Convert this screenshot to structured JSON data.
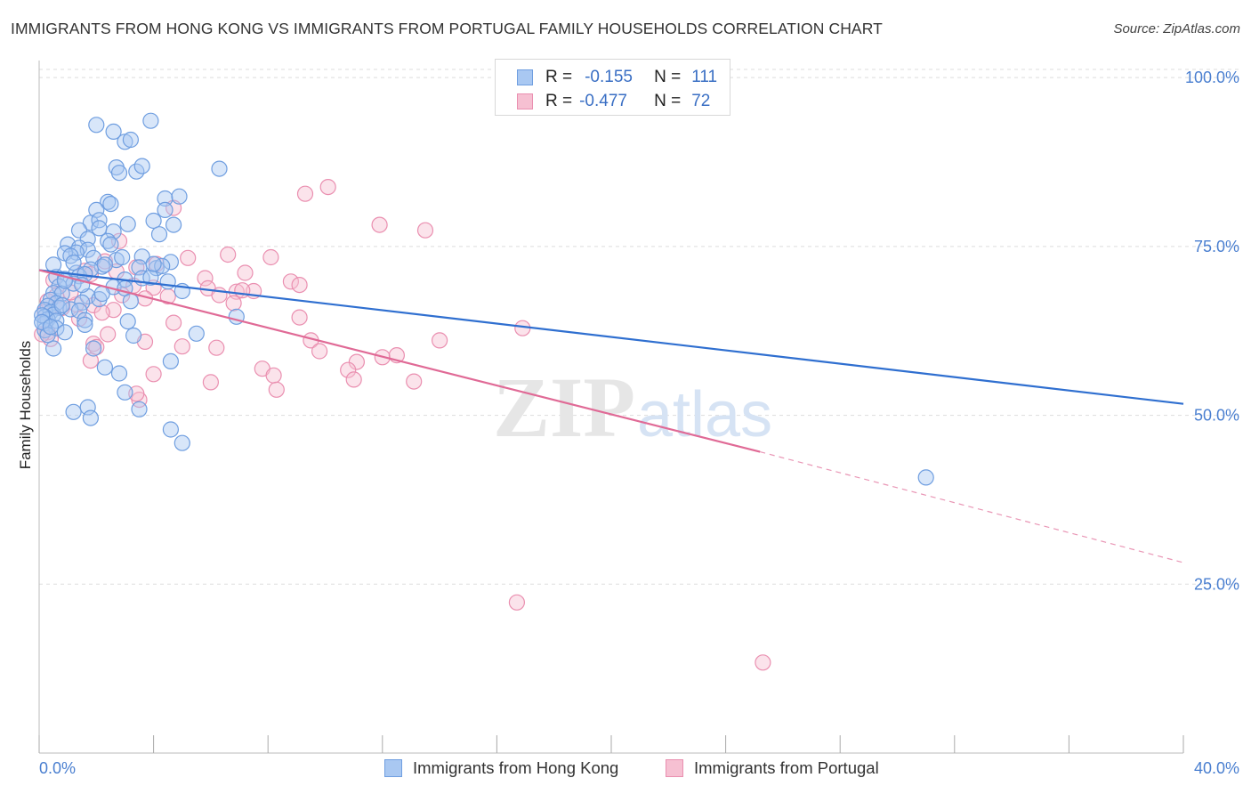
{
  "title": "IMMIGRANTS FROM HONG KONG VS IMMIGRANTS FROM PORTUGAL FAMILY HOUSEHOLDS CORRELATION CHART",
  "source": "Source: ZipAtlas.com",
  "watermark": {
    "zip": "ZIP",
    "atlas": "atlas"
  },
  "colors": {
    "blue_fill": "#a9c8f2",
    "blue_stroke": "#6f9ee0",
    "blue_line": "#2f6fd0",
    "pink_fill": "#f6c0d2",
    "pink_stroke": "#ea8fb0",
    "pink_line": "#e06a96",
    "grid": "#dddddd",
    "tick_label": "#4a7fd0"
  },
  "legend": {
    "rows": [
      {
        "r_label": "R =",
        "r_value": "-0.155",
        "n_label": "N =",
        "n_value": "111"
      },
      {
        "r_label": "R =",
        "r_value": "-0.477",
        "n_label": "N =",
        "n_value": "72"
      }
    ]
  },
  "chart_data": {
    "type": "scatter",
    "title": "IMMIGRANTS FROM HONG KONG VS IMMIGRANTS FROM PORTUGAL FAMILY HOUSEHOLDS CORRELATION CHART",
    "xlabel": "",
    "ylabel": "Family Households",
    "xlim": [
      0,
      40
    ],
    "ylim": [
      0,
      102
    ],
    "x_tick_labels": [
      "0.0%",
      "40.0%"
    ],
    "y_ticks": [
      25,
      50,
      75,
      100
    ],
    "y_tick_labels": [
      "25.0%",
      "50.0%",
      "75.0%",
      "100.0%"
    ],
    "grid": true,
    "legend_position": "top-center",
    "series": [
      {
        "name": "Immigrants from Hong Kong",
        "r": -0.155,
        "n": 111,
        "trend": {
          "x": [
            0,
            40
          ],
          "y": [
            71.5,
            51.7
          ]
        },
        "points": [
          [
            2.0,
            93.0
          ],
          [
            2.6,
            92.0
          ],
          [
            3.0,
            90.5
          ],
          [
            3.2,
            90.8
          ],
          [
            3.9,
            93.6
          ],
          [
            2.7,
            86.7
          ],
          [
            2.8,
            85.9
          ],
          [
            3.4,
            86.1
          ],
          [
            3.6,
            86.9
          ],
          [
            6.3,
            86.5
          ],
          [
            2.4,
            81.6
          ],
          [
            2.5,
            81.3
          ],
          [
            4.4,
            82.1
          ],
          [
            4.9,
            82.4
          ],
          [
            2.0,
            80.4
          ],
          [
            1.8,
            78.5
          ],
          [
            2.1,
            78.9
          ],
          [
            3.1,
            78.3
          ],
          [
            4.0,
            78.8
          ],
          [
            4.7,
            78.2
          ],
          [
            4.4,
            80.4
          ],
          [
            1.4,
            77.4
          ],
          [
            2.1,
            77.7
          ],
          [
            2.6,
            77.2
          ],
          [
            4.2,
            76.8
          ],
          [
            1.7,
            76.1
          ],
          [
            2.4,
            75.8
          ],
          [
            2.5,
            75.3
          ],
          [
            1.0,
            75.3
          ],
          [
            1.4,
            74.8
          ],
          [
            1.7,
            74.5
          ],
          [
            1.3,
            74.1
          ],
          [
            0.9,
            74.0
          ],
          [
            1.1,
            73.6
          ],
          [
            1.9,
            73.3
          ],
          [
            2.7,
            73.0
          ],
          [
            3.6,
            73.5
          ],
          [
            4.6,
            72.7
          ],
          [
            2.2,
            72.0
          ],
          [
            2.3,
            72.3
          ],
          [
            3.5,
            71.9
          ],
          [
            4.1,
            71.8
          ],
          [
            4.3,
            72.1
          ],
          [
            1.8,
            71.6
          ],
          [
            1.3,
            71.1
          ],
          [
            1.4,
            70.6
          ],
          [
            0.6,
            70.5
          ],
          [
            0.9,
            70.2
          ],
          [
            3.0,
            70.1
          ],
          [
            3.6,
            70.3
          ],
          [
            4.5,
            69.8
          ],
          [
            1.2,
            69.5
          ],
          [
            0.7,
            69.1
          ],
          [
            2.6,
            69.0
          ],
          [
            3.0,
            68.8
          ],
          [
            0.5,
            68.1
          ],
          [
            0.8,
            68.0
          ],
          [
            1.7,
            67.6
          ],
          [
            2.1,
            67.2
          ],
          [
            5.0,
            68.4
          ],
          [
            0.4,
            67.1
          ],
          [
            0.6,
            66.6
          ],
          [
            1.5,
            66.7
          ],
          [
            0.3,
            66.2
          ],
          [
            0.7,
            65.9
          ],
          [
            1.1,
            65.7
          ],
          [
            1.4,
            65.5
          ],
          [
            0.2,
            65.6
          ],
          [
            0.4,
            65.3
          ],
          [
            0.5,
            64.9
          ],
          [
            0.2,
            64.6
          ],
          [
            0.3,
            64.2
          ],
          [
            0.6,
            64.0
          ],
          [
            0.2,
            63.6
          ],
          [
            1.6,
            64.1
          ],
          [
            3.1,
            63.9
          ],
          [
            6.9,
            64.6
          ],
          [
            0.6,
            62.9
          ],
          [
            1.6,
            63.4
          ],
          [
            0.2,
            62.6
          ],
          [
            0.9,
            62.3
          ],
          [
            3.3,
            61.8
          ],
          [
            5.5,
            62.1
          ],
          [
            0.5,
            59.9
          ],
          [
            1.9,
            59.9
          ],
          [
            4.6,
            58.0
          ],
          [
            2.3,
            57.1
          ],
          [
            2.8,
            56.2
          ],
          [
            3.0,
            53.4
          ],
          [
            3.5,
            50.9
          ],
          [
            1.7,
            51.2
          ],
          [
            1.2,
            50.5
          ],
          [
            1.8,
            49.6
          ],
          [
            4.6,
            47.9
          ],
          [
            5.0,
            45.9
          ],
          [
            31.0,
            40.8
          ],
          [
            0.1,
            64.8
          ],
          [
            0.1,
            63.8
          ],
          [
            0.3,
            61.9
          ],
          [
            0.9,
            69.9
          ],
          [
            1.2,
            72.6
          ],
          [
            2.9,
            73.4
          ],
          [
            3.9,
            70.4
          ],
          [
            0.5,
            72.3
          ],
          [
            1.6,
            70.9
          ],
          [
            2.2,
            68.0
          ],
          [
            0.8,
            66.3
          ],
          [
            4.0,
            72.4
          ],
          [
            3.2,
            66.9
          ],
          [
            0.4,
            63.1
          ],
          [
            1.5,
            69.3
          ]
        ]
      },
      {
        "name": "Immigrants from Portugal",
        "r": -0.477,
        "n": 72,
        "trend": {
          "x": [
            0,
            25.2
          ],
          "y": [
            71.5,
            44.6
          ]
        },
        "trend_extension": {
          "x": [
            25.2,
            40
          ],
          "y": [
            44.6,
            28.2
          ]
        },
        "points": [
          [
            9.3,
            82.8
          ],
          [
            10.1,
            83.8
          ],
          [
            11.9,
            78.2
          ],
          [
            13.5,
            77.4
          ],
          [
            4.7,
            80.7
          ],
          [
            2.8,
            75.8
          ],
          [
            6.6,
            73.8
          ],
          [
            8.1,
            73.4
          ],
          [
            5.2,
            73.3
          ],
          [
            2.3,
            72.8
          ],
          [
            1.6,
            71.4
          ],
          [
            7.2,
            71.1
          ],
          [
            4.1,
            72.4
          ],
          [
            3.4,
            71.9
          ],
          [
            2.7,
            71.3
          ],
          [
            1.8,
            70.9
          ],
          [
            5.8,
            70.3
          ],
          [
            8.8,
            69.8
          ],
          [
            9.1,
            69.3
          ],
          [
            3.3,
            69.2
          ],
          [
            4.0,
            68.9
          ],
          [
            5.9,
            68.8
          ],
          [
            7.5,
            68.4
          ],
          [
            6.9,
            68.3
          ],
          [
            7.1,
            68.5
          ],
          [
            4.5,
            67.6
          ],
          [
            2.9,
            67.8
          ],
          [
            3.7,
            67.3
          ],
          [
            0.6,
            67.7
          ],
          [
            0.3,
            66.9
          ],
          [
            6.8,
            66.6
          ],
          [
            1.3,
            66.4
          ],
          [
            1.9,
            66.3
          ],
          [
            2.6,
            65.6
          ],
          [
            0.8,
            65.9
          ],
          [
            0.2,
            65.3
          ],
          [
            9.1,
            64.5
          ],
          [
            1.4,
            64.3
          ],
          [
            4.7,
            63.7
          ],
          [
            16.9,
            62.9
          ],
          [
            0.3,
            62.3
          ],
          [
            2.4,
            62.0
          ],
          [
            0.4,
            61.3
          ],
          [
            9.5,
            61.1
          ],
          [
            3.7,
            60.9
          ],
          [
            14.0,
            61.1
          ],
          [
            1.9,
            60.6
          ],
          [
            2.0,
            60.1
          ],
          [
            5.0,
            60.2
          ],
          [
            6.2,
            60.0
          ],
          [
            9.8,
            59.5
          ],
          [
            12.0,
            58.6
          ],
          [
            12.5,
            58.9
          ],
          [
            11.1,
            57.9
          ],
          [
            1.8,
            58.1
          ],
          [
            7.8,
            56.9
          ],
          [
            10.8,
            56.7
          ],
          [
            8.2,
            55.9
          ],
          [
            4.0,
            56.1
          ],
          [
            11.0,
            55.3
          ],
          [
            6.0,
            54.9
          ],
          [
            13.1,
            55.0
          ],
          [
            8.3,
            53.8
          ],
          [
            3.5,
            52.3
          ],
          [
            3.4,
            53.2
          ],
          [
            16.7,
            22.3
          ],
          [
            25.3,
            13.4
          ],
          [
            0.5,
            70.0
          ],
          [
            1.1,
            68.2
          ],
          [
            2.2,
            65.2
          ],
          [
            0.1,
            62.0
          ],
          [
            6.3,
            67.8
          ]
        ]
      }
    ]
  },
  "bottom_legend": [
    {
      "label": "Immigrants from Hong Kong"
    },
    {
      "label": "Immigrants from Portugal"
    }
  ]
}
